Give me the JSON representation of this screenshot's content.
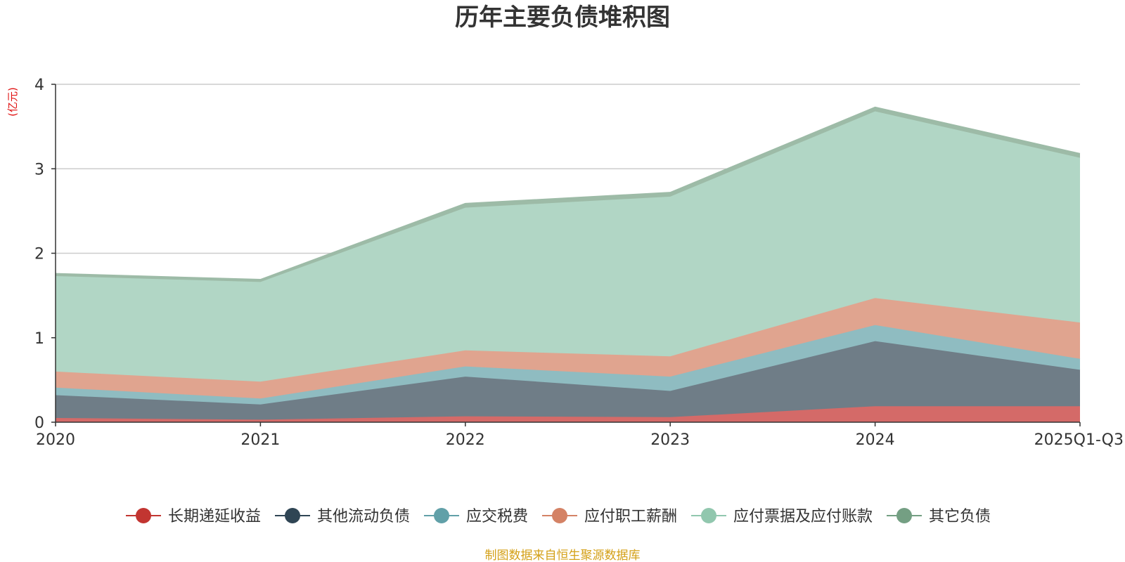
{
  "chart_data": {
    "type": "area",
    "stacked": true,
    "title": "历年主要负债堆积图",
    "unit_label": "(亿元)",
    "categories": [
      "2020",
      "2021",
      "2022",
      "2023",
      "2024",
      "2025Q1-Q3"
    ],
    "ylim": [
      0,
      4
    ],
    "yticks": [
      "0",
      "1",
      "2",
      "3",
      "4"
    ],
    "grid": true,
    "legend_position": "bottom",
    "series": [
      {
        "name": "长期递延收益",
        "values": [
          0.05,
          0.03,
          0.07,
          0.06,
          0.19,
          0.19
        ],
        "color": "#c23531",
        "fill": "#d46a68"
      },
      {
        "name": "其他流动负债",
        "values": [
          0.27,
          0.18,
          0.47,
          0.31,
          0.77,
          0.43
        ],
        "color": "#2f4554",
        "fill": "#6f7d87"
      },
      {
        "name": "应交税费",
        "values": [
          0.09,
          0.07,
          0.12,
          0.17,
          0.19,
          0.13
        ],
        "color": "#61a0a8",
        "fill": "#8fbcc1"
      },
      {
        "name": "应付职工薪酬",
        "values": [
          0.19,
          0.2,
          0.19,
          0.24,
          0.32,
          0.43
        ],
        "color": "#d48265",
        "fill": "#e0a48f"
      },
      {
        "name": "应付票据及应付账款",
        "values": [
          1.13,
          1.18,
          1.69,
          1.89,
          2.21,
          1.95
        ],
        "color": "#91c7ae",
        "fill": "#b1d6c5"
      },
      {
        "name": "其它负债",
        "values": [
          0.03,
          0.03,
          0.05,
          0.05,
          0.05,
          0.05
        ],
        "color": "#749f83",
        "fill": "#9dbba7"
      }
    ]
  },
  "footer": {
    "source": "制图数据来自恒生聚源数据库",
    "source_color": "#d4a017"
  },
  "unit_color": "#e01010"
}
